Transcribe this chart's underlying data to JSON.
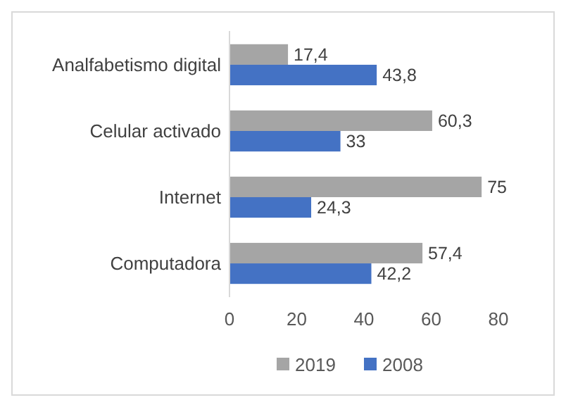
{
  "chart_data": {
    "type": "bar",
    "orientation": "horizontal",
    "categories": [
      "Analfabetismo digital",
      "Celular activado",
      "Internet",
      "Computadora"
    ],
    "series": [
      {
        "name": "2019",
        "color": "#a5a5a5",
        "values": [
          17.4,
          60.3,
          75,
          57.4
        ],
        "value_labels": [
          "17,4",
          "60,3",
          "75",
          "57,4"
        ]
      },
      {
        "name": "2008",
        "color": "#4472c4",
        "values": [
          43.8,
          33,
          24.3,
          42.2
        ],
        "value_labels": [
          "43,8",
          "33",
          "24,3",
          "42,2"
        ]
      }
    ],
    "xlim": [
      0,
      80
    ],
    "xticks": [
      0,
      20,
      40,
      60,
      80
    ],
    "grid": false,
    "legend": "bottom"
  }
}
